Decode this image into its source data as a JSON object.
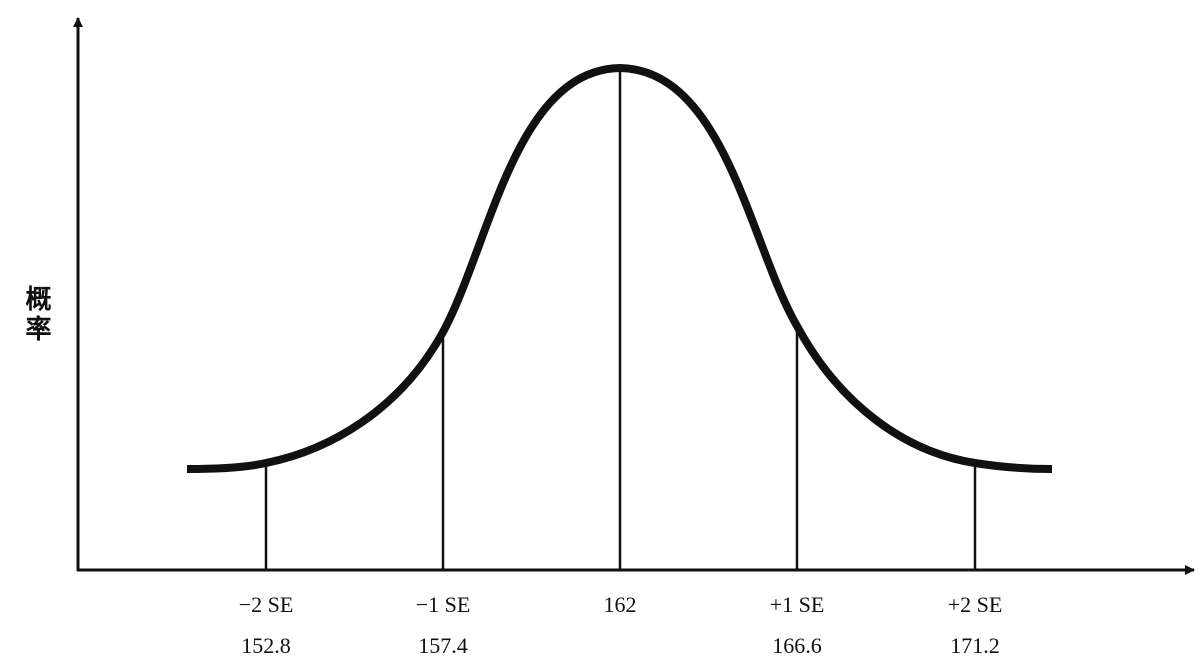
{
  "y_axis_label": "概率",
  "markers": [
    {
      "label": "−2 SE",
      "value": "152.8"
    },
    {
      "label": "−1 SE",
      "value": "157.4"
    },
    {
      "label": "162"
    },
    {
      "label": "+1 SE",
      "value": "166.6"
    },
    {
      "label": "+2 SE",
      "value": "171.2"
    }
  ]
}
